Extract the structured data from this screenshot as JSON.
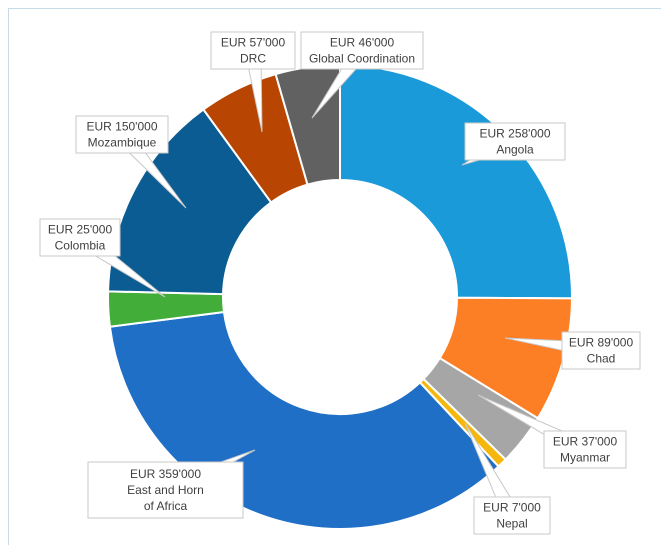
{
  "chart_data": {
    "type": "pie",
    "title": "",
    "slices": [
      {
        "value_label": "EUR 258'000",
        "name": "Angola",
        "value": 258000,
        "color": "#1b9ad9"
      },
      {
        "value_label": "EUR 89'000",
        "name": "Chad",
        "value": 89000,
        "color": "#fd7f25"
      },
      {
        "value_label": "EUR 37'000",
        "name": "Myanmar",
        "value": 37000,
        "color": "#a6a6a6"
      },
      {
        "value_label": "EUR 7'000",
        "name": "Nepal",
        "value": 7000,
        "color": "#f5b70b"
      },
      {
        "value_label": "EUR 359'000",
        "name": "East and Horn of Africa",
        "value": 359000,
        "color": "#1f6fc6"
      },
      {
        "value_label": "EUR 25'000",
        "name": "Colombia",
        "value": 25000,
        "color": "#43ad3a"
      },
      {
        "value_label": "EUR 150'000",
        "name": "Mozambique",
        "value": 150000,
        "color": "#0b5c92"
      },
      {
        "value_label": "EUR 57'000",
        "name": "DRC",
        "value": 57000,
        "color": "#b84602"
      },
      {
        "value_label": "EUR 46'000",
        "name": "Global Coordination",
        "value": 46000,
        "color": "#616161"
      }
    ]
  }
}
